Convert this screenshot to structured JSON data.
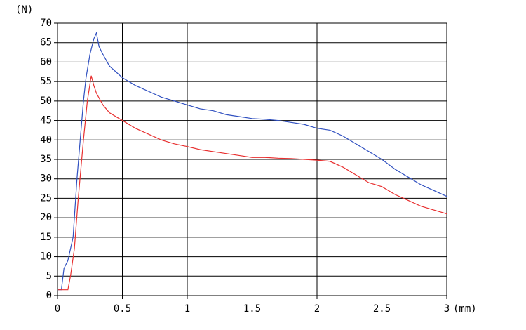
{
  "chart_data": {
    "type": "line",
    "y_label": "(N)",
    "x_label": "(mm)",
    "xlim": [
      0,
      3
    ],
    "ylim": [
      0,
      70
    ],
    "xticks": [
      0,
      0.5,
      1,
      1.5,
      2,
      2.5,
      3
    ],
    "yticks": [
      0,
      5,
      10,
      15,
      20,
      25,
      30,
      35,
      40,
      45,
      50,
      55,
      60,
      65,
      70
    ],
    "grid": true,
    "series": [
      {
        "color": "#3050c0",
        "x": [
          0,
          0.03,
          0.05,
          0.08,
          0.12,
          0.15,
          0.2,
          0.22,
          0.25,
          0.28,
          0.3,
          0.32,
          0.35,
          0.4,
          0.5,
          0.6,
          0.7,
          0.8,
          0.9,
          1.0,
          1.1,
          1.2,
          1.3,
          1.4,
          1.5,
          1.6,
          1.7,
          1.8,
          1.9,
          2.0,
          2.1,
          2.2,
          2.3,
          2.4,
          2.5,
          2.6,
          2.7,
          2.8,
          2.9,
          3.0
        ],
        "values": [
          1.5,
          1.5,
          7,
          9,
          15,
          30,
          50,
          56,
          62,
          66,
          67.5,
          64,
          62,
          59,
          56,
          54,
          52.5,
          51,
          50,
          49,
          48,
          47.5,
          46.5,
          46,
          45.5,
          45.3,
          45,
          44.5,
          44,
          43,
          42.5,
          41,
          39,
          37,
          35,
          32.5,
          30.5,
          28.5,
          27,
          25.5
        ]
      },
      {
        "color": "#e83030",
        "x": [
          0,
          0.05,
          0.08,
          0.1,
          0.13,
          0.16,
          0.2,
          0.23,
          0.26,
          0.28,
          0.3,
          0.35,
          0.4,
          0.5,
          0.6,
          0.7,
          0.8,
          0.9,
          1.0,
          1.1,
          1.2,
          1.3,
          1.4,
          1.5,
          1.6,
          1.7,
          1.8,
          1.9,
          2.0,
          2.1,
          2.2,
          2.3,
          2.4,
          2.5,
          2.6,
          2.7,
          2.8,
          2.9,
          3.0
        ],
        "values": [
          1.5,
          1.5,
          1.5,
          5,
          12,
          25,
          40,
          50,
          56.5,
          54,
          52,
          49,
          47,
          45,
          43,
          41.5,
          40,
          39,
          38.3,
          37.5,
          37,
          36.5,
          36,
          35.5,
          35.5,
          35.3,
          35.2,
          35,
          34.8,
          34.5,
          33,
          31,
          29,
          28,
          26,
          24.5,
          23,
          22,
          21
        ]
      }
    ]
  }
}
